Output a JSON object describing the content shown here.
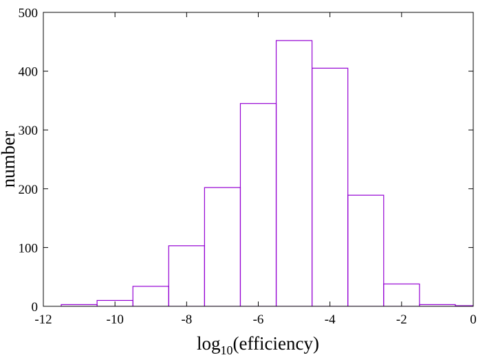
{
  "chart_data": {
    "type": "bar",
    "variant": "histogram",
    "xlabel_base": "log",
    "xlabel_subscript": "10",
    "xlabel_rest": "(efficiency)",
    "ylabel": "number",
    "xlim": [
      -12,
      0
    ],
    "ylim": [
      0,
      500
    ],
    "xticks": [
      -12,
      -10,
      -8,
      -6,
      -4,
      -2,
      0
    ],
    "xtick_labels": [
      "-12",
      "-10",
      "-8",
      "-6",
      "-4",
      "-2",
      "0"
    ],
    "yticks": [
      0,
      100,
      200,
      300,
      400,
      500
    ],
    "ytick_labels": [
      "0",
      "100",
      "200",
      "300",
      "400",
      "500"
    ],
    "bin_width": 1,
    "bins": [
      {
        "center": -11,
        "value": 3
      },
      {
        "center": -10,
        "value": 10
      },
      {
        "center": -9,
        "value": 34
      },
      {
        "center": -8,
        "value": 103
      },
      {
        "center": -7,
        "value": 202
      },
      {
        "center": -6,
        "value": 345
      },
      {
        "center": -5,
        "value": 452
      },
      {
        "center": -4,
        "value": 405
      },
      {
        "center": -3,
        "value": 189
      },
      {
        "center": -2,
        "value": 38
      },
      {
        "center": -1,
        "value": 3
      },
      {
        "center": 0,
        "value": 1
      }
    ],
    "bar_color": "#9400d3",
    "grid": false,
    "legend": "none"
  }
}
